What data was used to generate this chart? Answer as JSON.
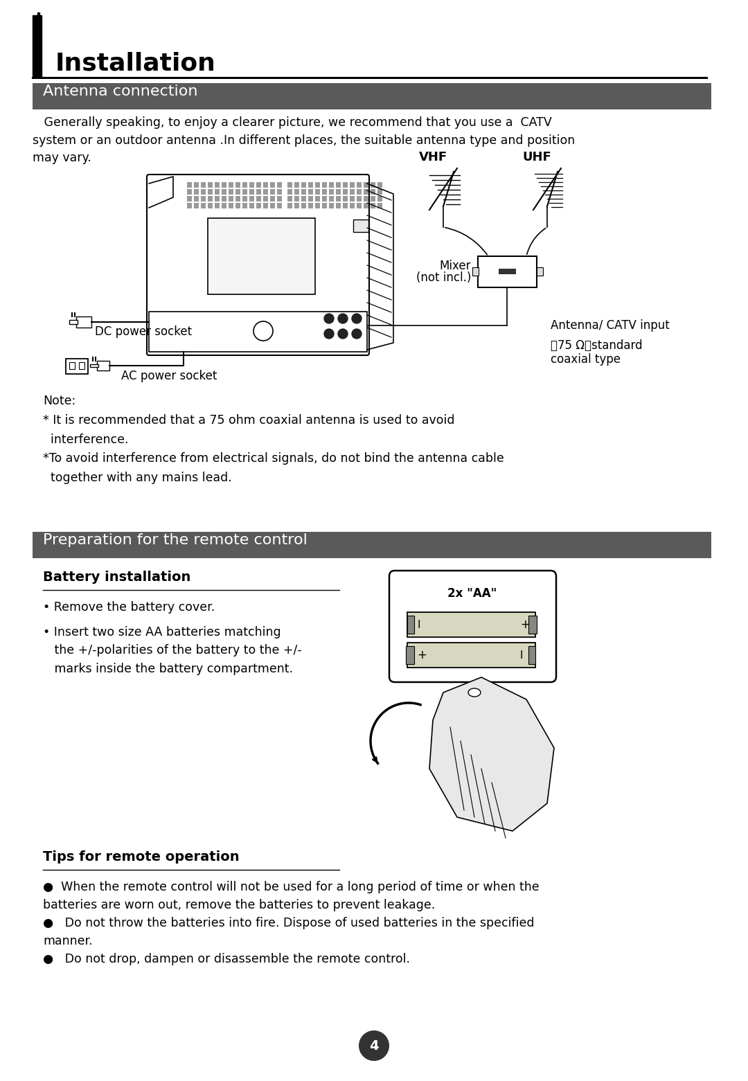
{
  "bg_color": "#ffffff",
  "title": "Installation",
  "section1_header": "Antenna connection",
  "section1_header_bg": "#5a5a5a",
  "section2_header": "Preparation for the remote control",
  "section2_header_bg": "#5a5a5a",
  "intro_text": "   Generally speaking, to enjoy a clearer picture, we recommend that you use a  CATV\nsystem or an outdoor antenna .In different places, the suitable antenna type and position\nmay vary.",
  "note_text": "Note:\n* It is recommended that a 75 ohm coaxial antenna is used to avoid\n  interference.\n*To avoid interference from electrical signals, do not bind the antenna cable\n  together with any mains lead.",
  "battery_install_title": "Battery installation",
  "battery_text1": "• Remove the battery cover.",
  "battery_text2": "• Insert two size AA batteries matching\n   the +/-polarities of the battery to the +/-\n   marks inside the battery compartment.",
  "tips_title": "Tips for remote operation",
  "tips_text1": "●  When the remote control will not be used for a long period of time or when the\nbatteries are worn out, remove the batteries to prevent leakage.",
  "tips_text2": "●   Do not throw the batteries into fire. Dispose of used batteries in the specified\nmanner.",
  "tips_text3": "●   Do not drop, dampen or disassemble the remote control.",
  "page_number": "4",
  "antenna_catv_label": "Antenna/ CATV input",
  "antenna_catv_label2": "（75 Ω）standard",
  "antenna_catv_label3": "coaxial type",
  "mixer_label1": "Mixer",
  "mixer_label2": "(not incl.)",
  "dc_label": "DC power socket",
  "ac_label": "AC power socket",
  "vhf_label": "VHF",
  "uhf_label": "UHF",
  "battery_aa_label": "2x \"AA\""
}
